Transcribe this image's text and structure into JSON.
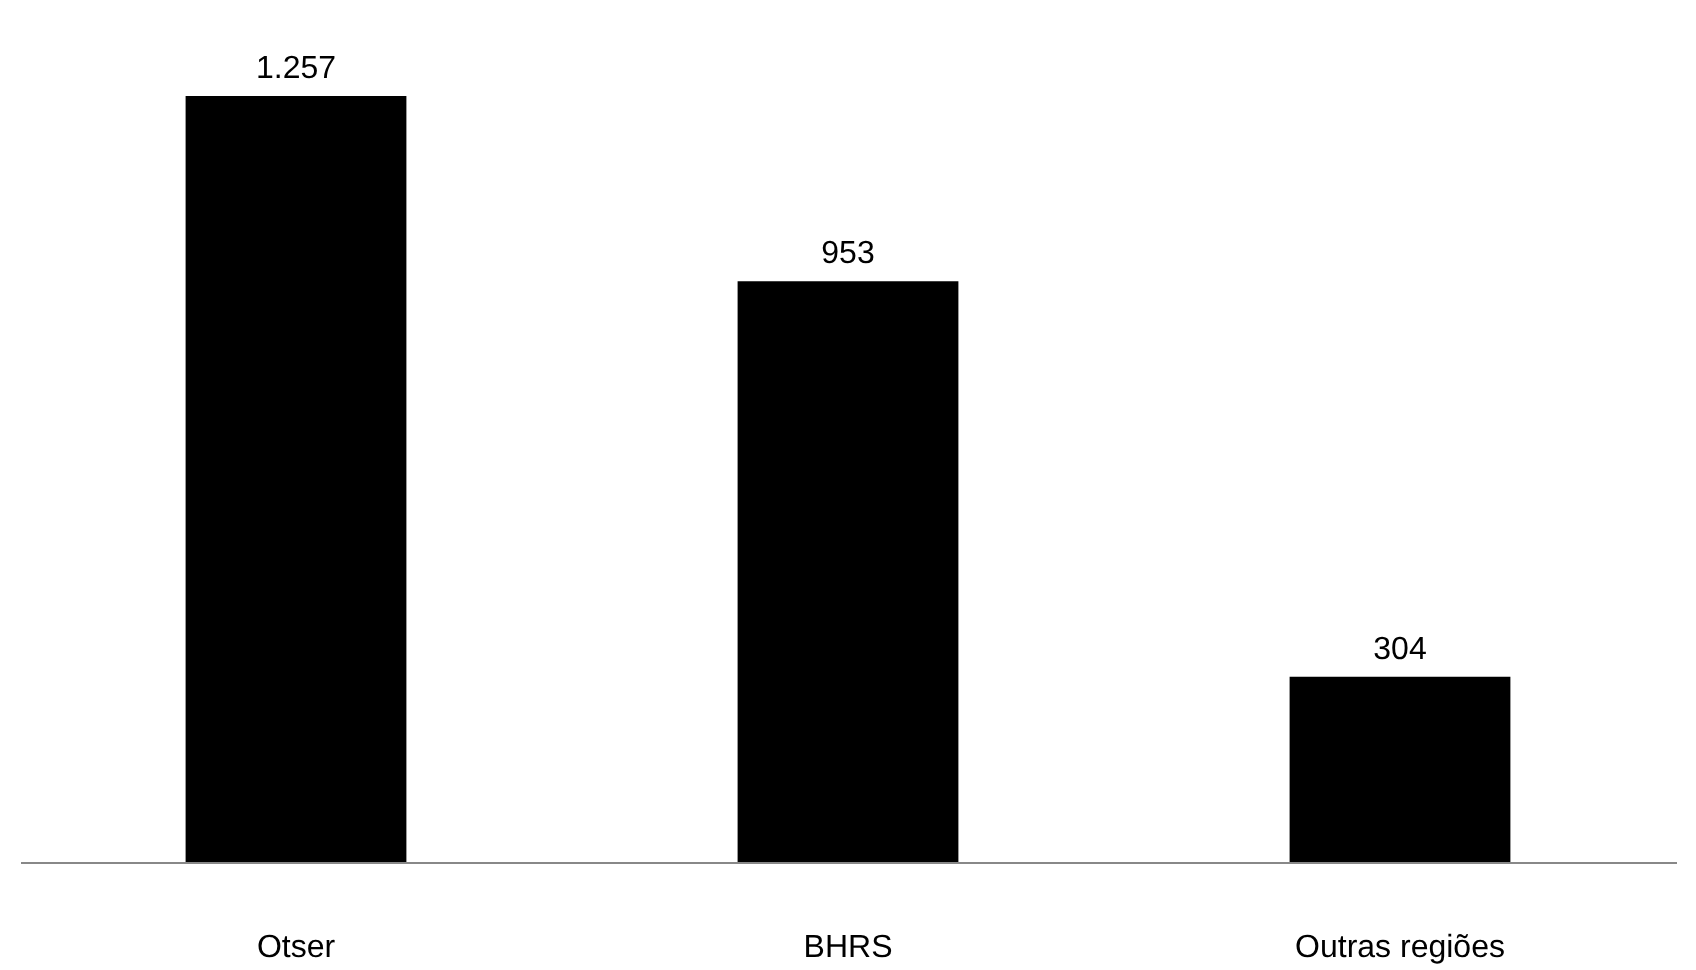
{
  "chart_data": {
    "type": "bar",
    "categories": [
      "Otser",
      "BHRS",
      "Outras regiões"
    ],
    "values": [
      1257,
      953,
      304
    ],
    "value_labels": [
      "1.257",
      "953",
      "304"
    ],
    "color": "#000000"
  }
}
